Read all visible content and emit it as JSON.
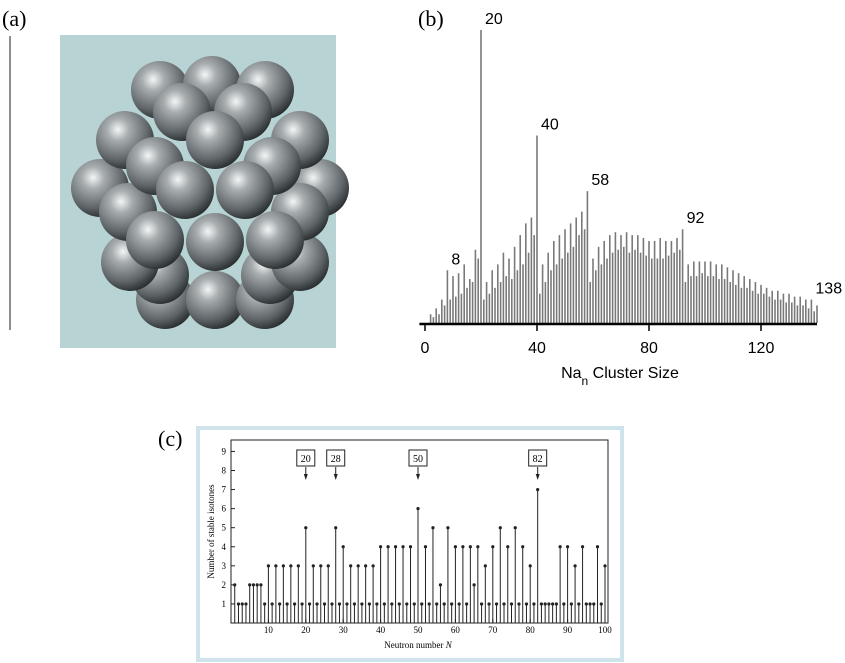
{
  "figure_a": {
    "panel_label": "(a)"
  },
  "chart_data": [
    {
      "type": "spectrum",
      "panel_label": "(b)",
      "xlabel": [
        "Na",
        "n",
        " Cluster Size"
      ],
      "xlim": [
        -2,
        140
      ],
      "xticks": [
        0,
        40,
        80,
        120
      ],
      "ylim": [
        0,
        100
      ],
      "color": "#7a7a7a",
      "x": [
        2,
        3,
        4,
        5,
        6,
        7,
        8,
        9,
        10,
        11,
        12,
        13,
        14,
        15,
        16,
        17,
        18,
        19,
        20,
        21,
        22,
        23,
        24,
        25,
        26,
        27,
        28,
        29,
        30,
        31,
        32,
        33,
        34,
        35,
        36,
        37,
        38,
        39,
        40,
        41,
        42,
        43,
        44,
        45,
        46,
        47,
        48,
        49,
        50,
        51,
        52,
        53,
        54,
        55,
        56,
        57,
        58,
        59,
        60,
        61,
        62,
        63,
        64,
        65,
        66,
        67,
        68,
        69,
        70,
        71,
        72,
        73,
        74,
        75,
        76,
        77,
        78,
        79,
        80,
        81,
        82,
        83,
        84,
        85,
        86,
        87,
        88,
        89,
        90,
        91,
        92,
        93,
        94,
        95,
        96,
        97,
        98,
        99,
        100,
        101,
        102,
        103,
        104,
        105,
        106,
        107,
        108,
        109,
        110,
        111,
        112,
        113,
        114,
        115,
        116,
        117,
        118,
        119,
        120,
        121,
        122,
        123,
        124,
        125,
        126,
        127,
        128,
        129,
        130,
        131,
        132,
        133,
        134,
        135,
        136,
        137,
        138,
        139,
        140
      ],
      "values": [
        3,
        2,
        5,
        3,
        8,
        6,
        18,
        8,
        16,
        9,
        17,
        10,
        20,
        12,
        15,
        14,
        25,
        22,
        100,
        8,
        14,
        10,
        18,
        12,
        20,
        14,
        24,
        16,
        22,
        15,
        26,
        18,
        30,
        20,
        34,
        24,
        36,
        30,
        64,
        10,
        20,
        14,
        24,
        18,
        28,
        20,
        30,
        22,
        32,
        24,
        34,
        26,
        36,
        30,
        38,
        32,
        45,
        14,
        22,
        18,
        26,
        20,
        28,
        22,
        30,
        24,
        31,
        25,
        30,
        26,
        31,
        24,
        30,
        25,
        30,
        24,
        29,
        23,
        28,
        22,
        28,
        22,
        29,
        22,
        28,
        23,
        28,
        24,
        29,
        25,
        32,
        14,
        20,
        16,
        21,
        16,
        21,
        17,
        21,
        16,
        21,
        16,
        20,
        15,
        20,
        15,
        19,
        14,
        18,
        13,
        17,
        12,
        16,
        12,
        15,
        11,
        14,
        10,
        13,
        10,
        12,
        9,
        11,
        8,
        11,
        8,
        10,
        7,
        10,
        7,
        9,
        6,
        9,
        6,
        8,
        5,
        8,
        4,
        6
      ],
      "annotations": [
        8,
        20,
        40,
        58,
        92,
        138
      ]
    },
    {
      "type": "stem",
      "panel_label": "(c)",
      "ylabel": "Number of stable isotones",
      "xlabel": [
        "Neutron number ",
        "N"
      ],
      "xlim": [
        0,
        100
      ],
      "xticks": [
        10,
        20,
        30,
        40,
        50,
        60,
        70,
        80,
        90,
        100
      ],
      "ylim": [
        0,
        9.6
      ],
      "yticks": [
        1,
        2,
        3,
        4,
        5,
        6,
        7,
        8,
        9
      ],
      "color": "#222222",
      "x": [
        1,
        2,
        3,
        4,
        5,
        6,
        7,
        8,
        9,
        10,
        11,
        12,
        13,
        14,
        15,
        16,
        17,
        18,
        19,
        20,
        21,
        22,
        23,
        24,
        25,
        26,
        27,
        28,
        29,
        30,
        31,
        32,
        33,
        34,
        35,
        36,
        37,
        38,
        39,
        40,
        41,
        42,
        43,
        44,
        45,
        46,
        47,
        48,
        49,
        50,
        51,
        52,
        53,
        54,
        55,
        56,
        57,
        58,
        59,
        60,
        61,
        62,
        63,
        64,
        65,
        66,
        67,
        68,
        69,
        70,
        71,
        72,
        73,
        74,
        75,
        76,
        77,
        78,
        79,
        80,
        81,
        82,
        83,
        84,
        85,
        86,
        87,
        88,
        89,
        90,
        91,
        92,
        93,
        94,
        95,
        96,
        97,
        98,
        99,
        100
      ],
      "values": [
        2,
        1,
        1,
        1,
        2,
        2,
        2,
        2,
        1,
        3,
        1,
        3,
        1,
        3,
        1,
        3,
        1,
        3,
        1,
        5,
        1,
        3,
        1,
        3,
        1,
        3,
        1,
        5,
        1,
        4,
        1,
        3,
        1,
        3,
        1,
        3,
        1,
        3,
        1,
        4,
        1,
        4,
        1,
        4,
        1,
        4,
        1,
        4,
        1,
        6,
        1,
        4,
        1,
        5,
        1,
        2,
        1,
        5,
        1,
        4,
        1,
        4,
        1,
        4,
        2,
        4,
        1,
        3,
        1,
        4,
        1,
        5,
        1,
        4,
        1,
        5,
        1,
        4,
        1,
        3,
        1,
        7,
        1,
        1,
        1,
        1,
        1,
        4,
        1,
        4,
        1,
        3,
        1,
        4,
        1,
        1,
        1,
        4,
        1,
        3
      ],
      "annotations": [
        20,
        28,
        50,
        82
      ]
    }
  ]
}
